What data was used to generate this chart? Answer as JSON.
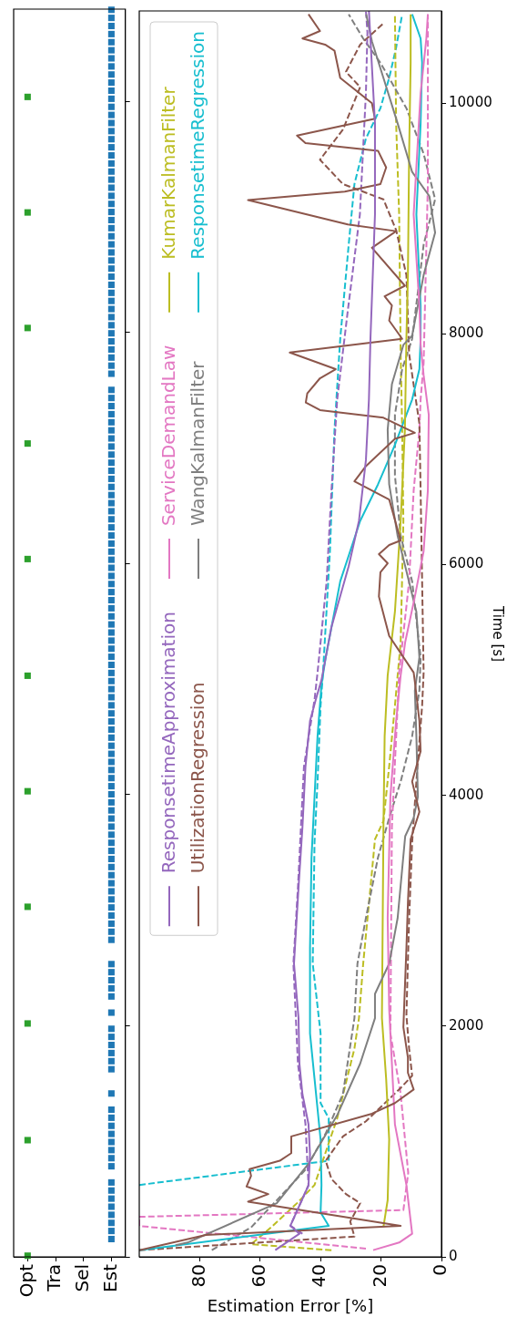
{
  "chart_data": [
    {
      "type": "scatter",
      "ylim": [
        0,
        10800
      ],
      "yticks": [
        {
          "value": 0,
          "label": null
        },
        {
          "value": 2000,
          "label": null
        },
        {
          "value": 4000,
          "label": null
        },
        {
          "value": 6000,
          "label": null
        },
        {
          "value": 8000,
          "label": null
        },
        {
          "value": 10000,
          "label": null
        }
      ],
      "categories": [
        "Opt",
        "Tra",
        "Sel",
        "Est"
      ],
      "tick_labels": "x",
      "series": [
        {
          "color": "#2ca02c",
          "marker": "square",
          "values": [
            10,
            1010,
            2020,
            3030,
            4030,
            5030,
            6040,
            7040,
            8040,
            9040,
            10040
          ],
          "x": [
            "Opt",
            "Opt",
            "Opt",
            "Opt",
            "Opt",
            "Opt",
            "Opt",
            "Opt",
            "Opt",
            "Opt",
            "Opt"
          ]
        },
        {
          "color": "#1f77b4",
          "marker": "square",
          "values": [
            154,
            224,
            294,
            364,
            434,
            504,
            574,
            644,
            784,
            854,
            924,
            994,
            1064,
            1134,
            1204,
            1274,
            1414,
            1624,
            1694,
            1764,
            1834,
            1904,
            1974,
            2114,
            2254,
            2324,
            2394,
            2464,
            2534,
            2744,
            2814,
            2884,
            2954,
            3024,
            3094,
            3164,
            3234,
            3304,
            3374,
            3444,
            3514,
            3584,
            3654,
            3724,
            3794,
            3864,
            3934,
            4004,
            4074,
            4144,
            4214,
            4284,
            4354,
            4424,
            4494,
            4564,
            4634,
            4704,
            4774,
            4844,
            4914,
            4984,
            5054,
            5124,
            5194,
            5264,
            5334,
            5404,
            5474,
            5544,
            5614,
            5684,
            5754,
            5824,
            5894,
            5964,
            6034,
            6104,
            6174,
            6244,
            6314,
            6384,
            6454,
            6524,
            6594,
            6664,
            6734,
            6804,
            6874,
            6944,
            7014,
            7084,
            7154,
            7224,
            7294,
            7364,
            7434,
            7504,
            7644,
            7714,
            7784,
            7854,
            7924,
            7994,
            8064,
            8134,
            8204,
            8274,
            8344,
            8414,
            8484,
            8554,
            8624,
            8694,
            8764,
            8834,
            8904,
            8974,
            9044,
            9114,
            9184,
            9254,
            9324,
            9394,
            9464,
            9534,
            9604,
            9674,
            9744,
            9814,
            9884,
            9954,
            10024,
            10094,
            10164,
            10234,
            10304,
            10374,
            10444,
            10514,
            10584,
            10654,
            10724,
            10794
          ],
          "x": [
            "Est",
            "Est",
            "Est",
            "Est",
            "Est",
            "Est",
            "Est",
            "Est",
            "Est",
            "Est",
            "Est",
            "Est",
            "Est",
            "Est",
            "Est",
            "Est",
            "Est",
            "Est",
            "Est",
            "Est",
            "Est",
            "Est",
            "Est",
            "Est",
            "Est",
            "Est",
            "Est",
            "Est",
            "Est",
            "Est",
            "Est",
            "Est",
            "Est",
            "Est",
            "Est",
            "Est",
            "Est",
            "Est",
            "Est",
            "Est",
            "Est",
            "Est",
            "Est",
            "Est",
            "Est",
            "Est",
            "Est",
            "Est",
            "Est",
            "Est",
            "Est",
            "Est",
            "Est",
            "Est",
            "Est",
            "Est",
            "Est",
            "Est",
            "Est",
            "Est",
            "Est",
            "Est",
            "Est",
            "Est",
            "Est",
            "Est",
            "Est",
            "Est",
            "Est",
            "Est",
            "Est",
            "Est",
            "Est",
            "Est",
            "Est",
            "Est",
            "Est",
            "Est",
            "Est",
            "Est",
            "Est",
            "Est",
            "Est",
            "Est",
            "Est",
            "Est",
            "Est",
            "Est",
            "Est",
            "Est",
            "Est",
            "Est",
            "Est",
            "Est",
            "Est",
            "Est",
            "Est",
            "Est",
            "Est",
            "Est",
            "Est",
            "Est",
            "Est",
            "Est",
            "Est",
            "Est",
            "Est",
            "Est",
            "Est",
            "Est",
            "Est",
            "Est",
            "Est",
            "Est",
            "Est",
            "Est",
            "Est",
            "Est",
            "Est",
            "Est",
            "Est",
            "Est",
            "Est",
            "Est",
            "Est",
            "Est",
            "Est",
            "Est",
            "Est",
            "Est",
            "Est",
            "Est",
            "Est",
            "Est",
            "Est",
            "Est",
            "Est",
            "Est",
            "Est",
            "Est",
            "Est",
            "Est",
            "Est",
            "Est"
          ]
        }
      ]
    },
    {
      "type": "line",
      "ylabel": "Time [s]",
      "xlabel": "Estimation Error [%]",
      "ylim": [
        0,
        10800
      ],
      "yticks": [
        0,
        2000,
        4000,
        6000,
        8000,
        10000
      ],
      "xlim": [
        100,
        0
      ],
      "xticks": [
        0,
        20,
        40,
        60,
        80
      ],
      "legend": "top left",
      "marker": "none",
      "series": [
        {
          "name": "ResponsetimeApproximation",
          "color": "#9467bd",
          "line_style": "solid",
          "values": [
            58,
            200,
            270,
            620,
            886,
            1150,
            1410,
            1675,
            2070,
            2542,
            3200,
            3725,
            4250,
            4645,
            4830,
            5000,
            5460,
            5986,
            6380,
            6906,
            7432,
            7958,
            9036,
            9825,
            10800
          ],
          "x": [
            55,
            47,
            50,
            44,
            43.5,
            44,
            46,
            47,
            47.3,
            48.8,
            47.3,
            46,
            45,
            43.5,
            41.6,
            39.7,
            36.4,
            30.7,
            27.3,
            25,
            24,
            23.5,
            22,
            22,
            24
          ]
        },
        {
          "name": "UtilizationRegression",
          "color": "#8c564b",
          "line_style": "solid",
          "values": [
            58,
            190,
            268,
            478,
            544,
            610,
            702,
            760,
            833,
            899,
            1044,
            1241,
            1333,
            1451,
            1596,
            1727,
            1990,
            2674,
            3068,
            3620,
            3857,
            4120,
            4383,
            4645,
            4987,
            5065,
            5382,
            5723,
            5934,
            6012,
            6091,
            6170,
            6210,
            6565,
            6722,
            6854,
            7091,
            7143,
            7274,
            7340,
            7406,
            7485,
            7616,
            7695,
            7839,
            7958,
            8116,
            8247,
            8326,
            8418,
            8747,
            8891,
            8950,
            9160,
            9233,
            9299,
            9443,
            9588,
            9654,
            9720,
            9865,
            10000,
            10219,
            10456,
            10508,
            10561,
            10626,
            10771
          ],
          "x": [
            100,
            78,
            13.5,
            64,
            57.3,
            64.5,
            63,
            63.5,
            53.5,
            49.7,
            49.7,
            23,
            15.4,
            9.2,
            11.1,
            11.1,
            12.6,
            11.6,
            11.1,
            10.2,
            7.3,
            9.7,
            6.9,
            7.3,
            8.8,
            9.2,
            17.3,
            20.7,
            20.2,
            17.8,
            20.7,
            17.3,
            13.5,
            17.3,
            28.8,
            25,
            15.4,
            8.8,
            19.2,
            40.2,
            44.9,
            44.4,
            40.2,
            35,
            50.2,
            13,
            17.3,
            16.4,
            18.8,
            12.1,
            23,
            15,
            31,
            64,
            32,
            20.2,
            18.3,
            21,
            45,
            47.8,
            22,
            23,
            33.5,
            35.4,
            38.5,
            46,
            40.2,
            44
          ]
        },
        {
          "name": "ServiceDemandLaw",
          "color": "#e377c2",
          "line_style": "solid",
          "values": [
            58,
            124,
            200,
            623,
            1149,
            1675,
            2148,
            2937,
            3988,
            4645,
            5040,
            5329,
            5723,
            6117,
            6643,
            7300,
            7642,
            7905,
            8247,
            9036,
            10088,
            10561,
            10771
          ],
          "x": [
            22.6,
            14,
            9.7,
            11.6,
            15.4,
            16.4,
            17.3,
            17.8,
            16.9,
            15,
            13.5,
            12,
            8.8,
            5.9,
            4.5,
            4.2,
            5.9,
            6.9,
            7.3,
            9.2,
            6.9,
            5,
            4.5
          ]
        },
        {
          "name": "WangKalmanFilter",
          "color": "#7f7f7f",
          "line_style": "solid",
          "values": [
            100,
            124,
            465,
            807,
            1228,
            1675,
            2069,
            2279,
            2542,
            2937,
            3646,
            3804,
            3988,
            4514,
            4908,
            5197,
            5592,
            5986,
            6249,
            6696,
            7170,
            7564,
            7905,
            7985,
            8510,
            8878,
            9194,
            9404,
            9825,
            10219,
            10535,
            10771
          ],
          "x": [
            88,
            84,
            54.5,
            44,
            34.5,
            26.9,
            22,
            22,
            17.3,
            14.5,
            12,
            9.2,
            7.8,
            8.3,
            8.8,
            7.3,
            8.3,
            12,
            14.5,
            17.3,
            17.8,
            16.4,
            12.6,
            9.7,
            5.9,
            2.1,
            4,
            9.7,
            14.5,
            19.2,
            23,
            24.9
          ]
        },
        {
          "name": "KumarKalmanFilter",
          "color": "#bcbd22",
          "line_style": "solid",
          "values": [
            260,
            492,
            1017,
            1543,
            2069,
            3725,
            4514,
            5040,
            5592,
            6380,
            7170,
            7958,
            8510,
            9562,
            10350,
            10771
          ],
          "x": [
            19.2,
            17.8,
            17.3,
            18.3,
            19.7,
            19.2,
            18.8,
            17.8,
            15.4,
            13.5,
            12.1,
            11.6,
            11.1,
            10.7,
            10.2,
            10.2
          ]
        },
        {
          "name": "ResponsetimeRegression",
          "color": "#17becf",
          "line_style": "solid",
          "values": [
            58,
            268,
            386,
            623,
            1017,
            1280,
            1543,
            1937,
            2674,
            3462,
            3988,
            4514,
            4961,
            5197,
            5855,
            6380,
            6696,
            7038,
            7432,
            7695,
            7958,
            8247,
            9036,
            9825,
            10350,
            10561,
            10771
          ],
          "x": [
            100,
            37.3,
            40,
            39.7,
            40,
            41,
            42,
            43.5,
            43.5,
            43,
            42,
            41,
            39.7,
            38.3,
            33.5,
            26.9,
            21,
            15.4,
            9.7,
            7.3,
            6.9,
            6.9,
            8.3,
            6.9,
            6.4,
            6.9,
            9.7
          ]
        },
        {
          "color": "#9467bd",
          "line_style": "dashed",
          "values": [
            200,
            270,
            620,
            1150,
            1675,
            2542,
            3200,
            4250,
            4830,
            5065,
            5855,
            6643,
            7432,
            8200,
            9036,
            9562,
            10088,
            10613,
            10800
          ],
          "x": [
            46,
            50,
            44,
            45,
            47.5,
            49,
            47.5,
            45.5,
            42,
            41,
            38,
            36.4,
            34.5,
            31,
            27,
            26,
            25,
            24.5,
            25
          ]
        },
        {
          "color": "#8c564b",
          "line_style": "dashed",
          "values": [
            58,
            176,
            307,
            465,
            544,
            675,
            833,
            1044,
            1175,
            1464,
            1570,
            1806,
            2095,
            2937,
            3594,
            4120,
            4777,
            5065,
            5855,
            6643,
            7222,
            7826,
            8510,
            8900,
            9167,
            9299,
            9510,
            9641,
            9772,
            10140,
            10272,
            10508,
            10692
          ],
          "x": [
            100,
            28.8,
            30.2,
            26.9,
            31.6,
            36.4,
            38.3,
            32.6,
            25,
            13.5,
            9.7,
            10.7,
            11.6,
            10.7,
            9.7,
            8.3,
            6.4,
            5.9,
            6.4,
            6.9,
            7.3,
            10.7,
            11.6,
            15,
            19.2,
            32.6,
            40.2,
            36.4,
            32.6,
            26.9,
            31.6,
            26.9,
            19.2
          ]
        },
        {
          "color": "#e377c2",
          "line_style": "dashed",
          "values": [
            71,
            268,
            347,
            405,
            728,
            1412,
            1937,
            3725,
            4777,
            5065,
            5855,
            6643,
            7170,
            7432,
            7747,
            9299,
            10350,
            10771
          ],
          "x": [
            25,
            100,
            100,
            12.6,
            11,
            13.5,
            16.9,
            16.4,
            14.5,
            14,
            10.7,
            9.2,
            7.3,
            6.9,
            5.9,
            4.5,
            4.5,
            4.5
          ]
        },
        {
          "color": "#7f7f7f",
          "line_style": "dashed",
          "values": [
            58,
            255,
            518,
            755,
            1070,
            1412,
            2069,
            2542,
            2937,
            3462,
            3804,
            4120,
            4514,
            4908,
            5197,
            5855,
            6249,
            6775,
            7300,
            7695,
            7958,
            8773,
            9167,
            9562,
            9957,
            10350,
            10561,
            10771
          ],
          "x": [
            76,
            63,
            53.5,
            45,
            38.3,
            32.6,
            28.8,
            27.8,
            25,
            21,
            17.3,
            13.5,
            9.7,
            7.3,
            6.9,
            9.7,
            13.5,
            15.4,
            15.4,
            13,
            9.7,
            5.9,
            2.1,
            5.9,
            11.6,
            20.2,
            25.9,
            30.7
          ]
        },
        {
          "color": "#bcbd22",
          "line_style": "dashed",
          "values": [
            58,
            110,
            255,
            465,
            623,
            1201,
            1806,
            2069,
            2542,
            3200,
            3620,
            3778,
            4251,
            4777,
            5329,
            6380,
            7170,
            7826,
            9036,
            9825,
            10771
          ],
          "x": [
            36.4,
            63,
            56.4,
            47.8,
            42,
            34.5,
            28.8,
            27.3,
            25.9,
            23.5,
            22,
            19.2,
            17.3,
            15.4,
            13.5,
            12.6,
            13,
            13.5,
            14,
            15,
            15.4
          ]
        },
        {
          "color": "#17becf",
          "line_style": "dashed",
          "values": [
            623,
            833,
            1201,
            1333,
            1937,
            2542,
            3594,
            4120,
            4777,
            5065,
            6117,
            7170,
            7958,
            8773,
            9299,
            9694,
            9957,
            10219,
            10482,
            10771
          ],
          "x": [
            100,
            37.3,
            37.3,
            40,
            40,
            42.6,
            42,
            41,
            40,
            39.2,
            36.9,
            35.4,
            33.5,
            30.7,
            28.8,
            25,
            20.2,
            17.3,
            15,
            13
          ]
        }
      ]
    }
  ]
}
